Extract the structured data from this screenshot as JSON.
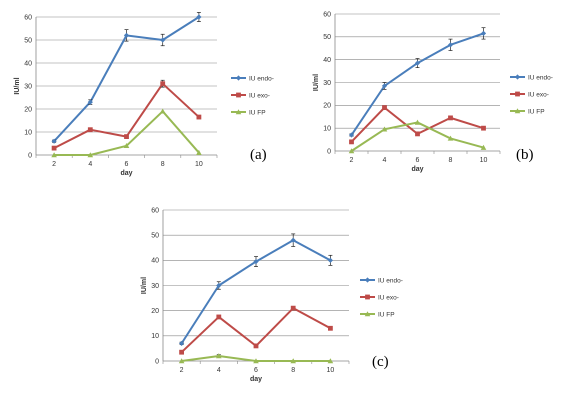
{
  "chart_data": [
    {
      "type": "line",
      "panel_label": "(a)",
      "xlabel": "day",
      "ylabel": "IU/ml",
      "categories": [
        "2",
        "4",
        "6",
        "8",
        "10"
      ],
      "ylim": [
        0,
        60
      ],
      "yticks": [
        "0",
        "10",
        "20",
        "30",
        "40",
        "50",
        "60"
      ],
      "grid": true,
      "legend": "right",
      "series": [
        {
          "name": "IU endo-",
          "color": "#4a7ebb",
          "marker": "diamond",
          "values": [
            6,
            23,
            52,
            50,
            60
          ],
          "errors": [
            0.5,
            1,
            2.5,
            2.5,
            2
          ]
        },
        {
          "name": "IU exo-",
          "color": "#be4b48",
          "marker": "square",
          "values": [
            3,
            11,
            8,
            31,
            16.5
          ],
          "errors": [
            0,
            0.5,
            0,
            1.5,
            0
          ]
        },
        {
          "name": "IU FP",
          "color": "#98b954",
          "marker": "triangle",
          "values": [
            0,
            0,
            4,
            19,
            1
          ],
          "errors": [
            0,
            0,
            0,
            0,
            0
          ]
        }
      ]
    },
    {
      "type": "line",
      "panel_label": "(b)",
      "xlabel": "day",
      "ylabel": "IU/ml",
      "categories": [
        "2",
        "4",
        "6",
        "8",
        "10"
      ],
      "ylim": [
        0,
        60
      ],
      "yticks": [
        "0",
        "10",
        "20",
        "30",
        "40",
        "50",
        "60"
      ],
      "grid": true,
      "legend": "right",
      "series": [
        {
          "name": "IU endo-",
          "color": "#4a7ebb",
          "marker": "diamond",
          "values": [
            7,
            28.5,
            38.5,
            46.5,
            51.5
          ],
          "errors": [
            0.5,
            1.5,
            2,
            2.5,
            2.5
          ]
        },
        {
          "name": "IU exo-",
          "color": "#be4b48",
          "marker": "square",
          "values": [
            4,
            19,
            7.5,
            14.5,
            10
          ],
          "errors": [
            0,
            0.5,
            0,
            0,
            0
          ]
        },
        {
          "name": "IU FP",
          "color": "#98b954",
          "marker": "triangle",
          "values": [
            0,
            9.5,
            12.5,
            5.5,
            1.5
          ],
          "errors": [
            0,
            0,
            0,
            0,
            0
          ]
        }
      ]
    },
    {
      "type": "line",
      "panel_label": "(c)",
      "xlabel": "day",
      "ylabel": "IU/ml",
      "categories": [
        "2",
        "4",
        "6",
        "8",
        "10"
      ],
      "ylim": [
        0,
        60
      ],
      "yticks": [
        "0",
        "10",
        "20",
        "30",
        "40",
        "50",
        "60"
      ],
      "grid": true,
      "legend": "right",
      "series": [
        {
          "name": "IU endo-",
          "color": "#4a7ebb",
          "marker": "diamond",
          "values": [
            7,
            30,
            39.5,
            48,
            40
          ],
          "errors": [
            0.5,
            1.5,
            2,
            2.5,
            2
          ]
        },
        {
          "name": "IU exo-",
          "color": "#be4b48",
          "marker": "square",
          "values": [
            3.5,
            17.5,
            6,
            21,
            13
          ],
          "errors": [
            0,
            0,
            0,
            0,
            0
          ]
        },
        {
          "name": "IU FP",
          "color": "#98b954",
          "marker": "triangle",
          "values": [
            0,
            2,
            0,
            0,
            0
          ],
          "errors": [
            0,
            0.5,
            0,
            0,
            0
          ]
        }
      ]
    }
  ]
}
